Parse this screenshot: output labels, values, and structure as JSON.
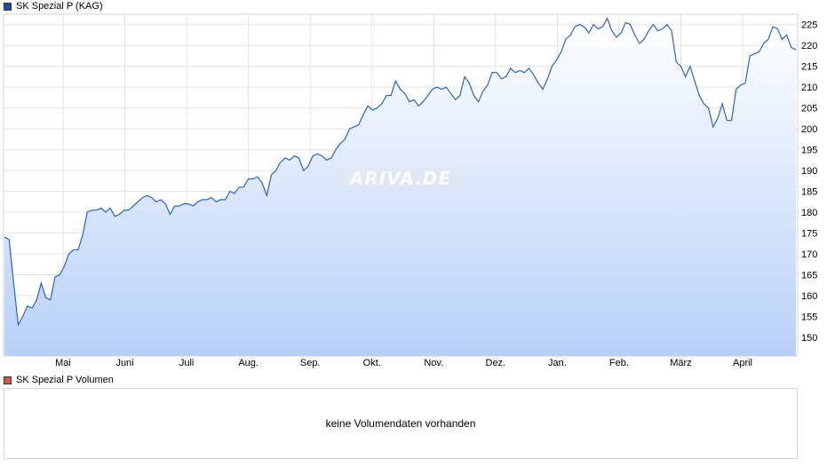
{
  "price_legend": {
    "label": "SK Spezial P (KAG)",
    "color": "#1f4aa0"
  },
  "volume_legend": {
    "label": "SK Spezial P Volumen",
    "color": "#d9534f"
  },
  "volume_panel": {
    "message": "keine Volumendaten vorhanden"
  },
  "watermark": {
    "text": "ARIVA.DE"
  },
  "chart_data": {
    "type": "area",
    "y_ticks": [
      150,
      155,
      160,
      165,
      170,
      175,
      180,
      185,
      190,
      195,
      200,
      205,
      210,
      215,
      220,
      225
    ],
    "ylim": [
      145.5,
      227.5
    ],
    "x_ticks": [
      "Mai",
      "Juni",
      "Juli",
      "Aug.",
      "Sep.",
      "Okt.",
      "Nov.",
      "Dez.",
      "Jan.",
      "Feb.",
      "März",
      "April"
    ],
    "grid": true,
    "series": [
      {
        "values": [
          174,
          173.5,
          163,
          153,
          155,
          157.5,
          157,
          159,
          163,
          159.5,
          159,
          164.5,
          165,
          167,
          170,
          171,
          171,
          174.5,
          180,
          180.5,
          180.5,
          181,
          180,
          181,
          179,
          179.5,
          180.5,
          180.5,
          181.5,
          182.5,
          183.5,
          184,
          183.5,
          182.5,
          183,
          182,
          179.5,
          181.5,
          181.5,
          182,
          182,
          181.5,
          182.5,
          183,
          183,
          183.5,
          182.5,
          183,
          183,
          185,
          184.5,
          186,
          186,
          188,
          188,
          188.5,
          187,
          184,
          189,
          190,
          192,
          193,
          192.5,
          193.5,
          193,
          190,
          191,
          193.5,
          194,
          193.5,
          192.5,
          193,
          195,
          196.5,
          197.5,
          200,
          200.5,
          201,
          203.5,
          205.5,
          204.5,
          205,
          206,
          208,
          208,
          211.5,
          209.5,
          208.5,
          206.5,
          207,
          205.5,
          206.5,
          208,
          209.5,
          210,
          209.5,
          210,
          208.5,
          207,
          208,
          212.5,
          211,
          208,
          206.5,
          209,
          210.5,
          213.5,
          213.5,
          212,
          212.5,
          214.5,
          213.5,
          214,
          213.5,
          214.5,
          213,
          211,
          209.5,
          212,
          215,
          216.5,
          218.5,
          221.5,
          222.5,
          224.5,
          225,
          224.5,
          223,
          225,
          224,
          224.5,
          226.5,
          223.5,
          222,
          223,
          225.5,
          225,
          222.5,
          220.5,
          221.5,
          223.5,
          225,
          223.5,
          224,
          225,
          223.5,
          216,
          215,
          212.5,
          215,
          211.5,
          208,
          206,
          205,
          200.5,
          202.5,
          206,
          202,
          202,
          209.5,
          210.5,
          211,
          217.5,
          218,
          218.5,
          220.5,
          221.5,
          224.5,
          224,
          221.5,
          222.5,
          219.5,
          219
        ]
      }
    ]
  }
}
